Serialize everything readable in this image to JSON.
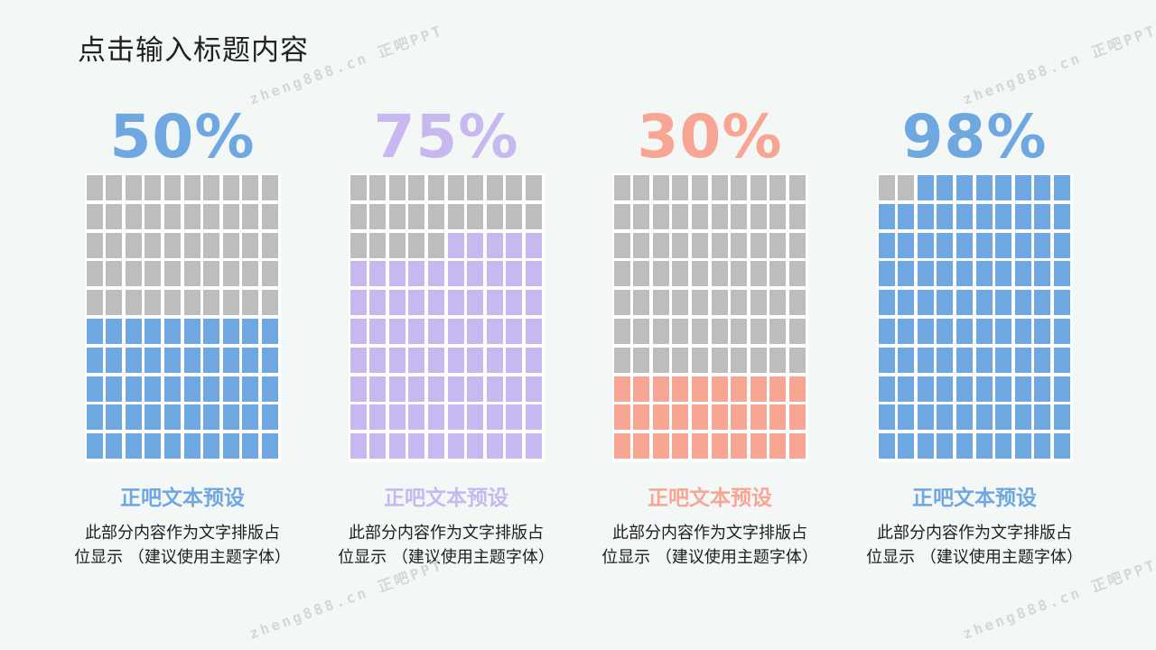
{
  "title": "点击输入标题内容",
  "colors": {
    "background": "#f3f8f7",
    "empty_cell": "#bdbdbd"
  },
  "watermark": "zheng888.cn 正吧PPT",
  "grid": {
    "columns": 10,
    "rows": 10
  },
  "chart_data": [
    {
      "type": "waffle",
      "value_label": "50%",
      "value": 50,
      "color": "#6fa8e0",
      "label": "正吧文本预设",
      "description": [
        "此部分内容作为文字排版占",
        "位显示 （建议使用主题字体）"
      ]
    },
    {
      "type": "waffle",
      "value_label": "75%",
      "value": 75,
      "color": "#c7b8ef",
      "label": "正吧文本预设",
      "description": [
        "此部分内容作为文字排版占",
        "位显示 （建议使用主题字体）"
      ]
    },
    {
      "type": "waffle",
      "value_label": "30%",
      "value": 30,
      "color": "#f8a593",
      "label": "正吧文本预设",
      "description": [
        "此部分内容作为文字排版占",
        "位显示 （建议使用主题字体）"
      ]
    },
    {
      "type": "waffle",
      "value_label": "98%",
      "value": 98,
      "color": "#6fa8e0",
      "label": "正吧文本预设",
      "description": [
        "此部分内容作为文字排版占",
        "位显示 （建议使用主题字体）"
      ]
    }
  ]
}
